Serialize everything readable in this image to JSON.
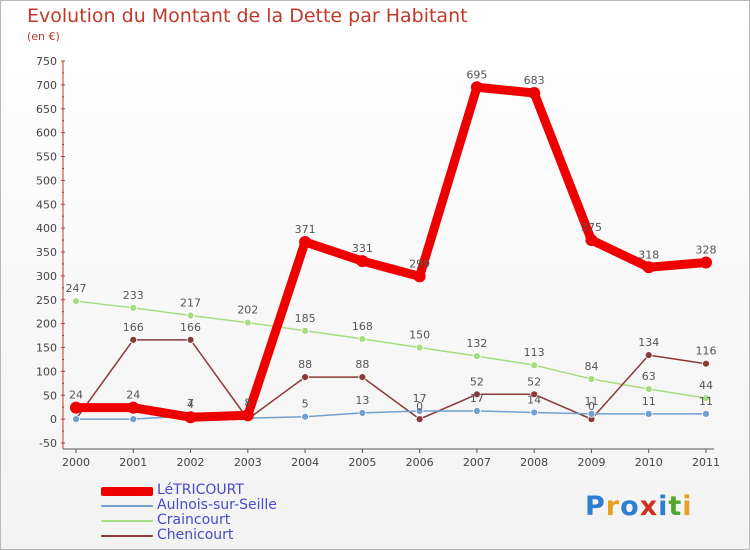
{
  "title": "Evolution du Montant de la Dette par Habitant",
  "subtitle": "(en €)",
  "logo": {
    "text": "Proxiti",
    "colors": [
      "#2f7fd0",
      "#e8a020",
      "#2f7fd0",
      "#d03020",
      "#2f7fd0",
      "#50a830",
      "#e8a020"
    ]
  },
  "chart_data": {
    "type": "line",
    "x": [
      "2000",
      "2001",
      "2002",
      "2003",
      "2004",
      "2005",
      "2006",
      "2007",
      "2008",
      "2009",
      "2010",
      "2011"
    ],
    "yticks": [
      "750",
      "700",
      "650",
      "600",
      "550",
      "500",
      "450",
      "400",
      "350",
      "300",
      "250",
      "200",
      "150",
      "100",
      "50",
      "0",
      "-50"
    ],
    "ylim": [
      -50,
      750
    ],
    "grid": false,
    "legend_position": "bottom-left",
    "series": [
      {
        "name": "LéTRICOURT",
        "color": "#ee0000",
        "width": 9,
        "values": [
          24,
          24,
          4,
          8,
          371,
          331,
          299,
          695,
          683,
          375,
          318,
          328
        ],
        "labels": [
          "24",
          "24",
          "4",
          "8",
          "371",
          "331",
          "299",
          "695",
          "683",
          "375",
          "318",
          "328"
        ]
      },
      {
        "name": "Aulnois-sur-Seille",
        "color": "#6fa0cf",
        "width": 1.5,
        "values": [
          0,
          0,
          7,
          2,
          5,
          13,
          17,
          17,
          14,
          11,
          11,
          11
        ],
        "labels": [
          "",
          "",
          "7",
          "",
          "5",
          "13",
          "17",
          "17",
          "14",
          "11",
          "11",
          "11"
        ]
      },
      {
        "name": "Craincourt",
        "color": "#a8dc80",
        "width": 1.5,
        "values": [
          247,
          233,
          217,
          202,
          185,
          168,
          150,
          132,
          113,
          84,
          63,
          44
        ],
        "labels": [
          "247",
          "233",
          "217",
          "202",
          "185",
          "168",
          "150",
          "132",
          "113",
          "84",
          "63",
          "44"
        ]
      },
      {
        "name": "Chenicourt",
        "color": "#8b3a3a",
        "width": 1.5,
        "values": [
          0,
          166,
          166,
          0,
          88,
          88,
          0,
          52,
          52,
          0,
          134,
          116
        ],
        "labels": [
          "",
          "166",
          "166",
          "",
          "88",
          "88",
          "0",
          "52",
          "52",
          "0",
          "134",
          "116"
        ]
      }
    ]
  }
}
